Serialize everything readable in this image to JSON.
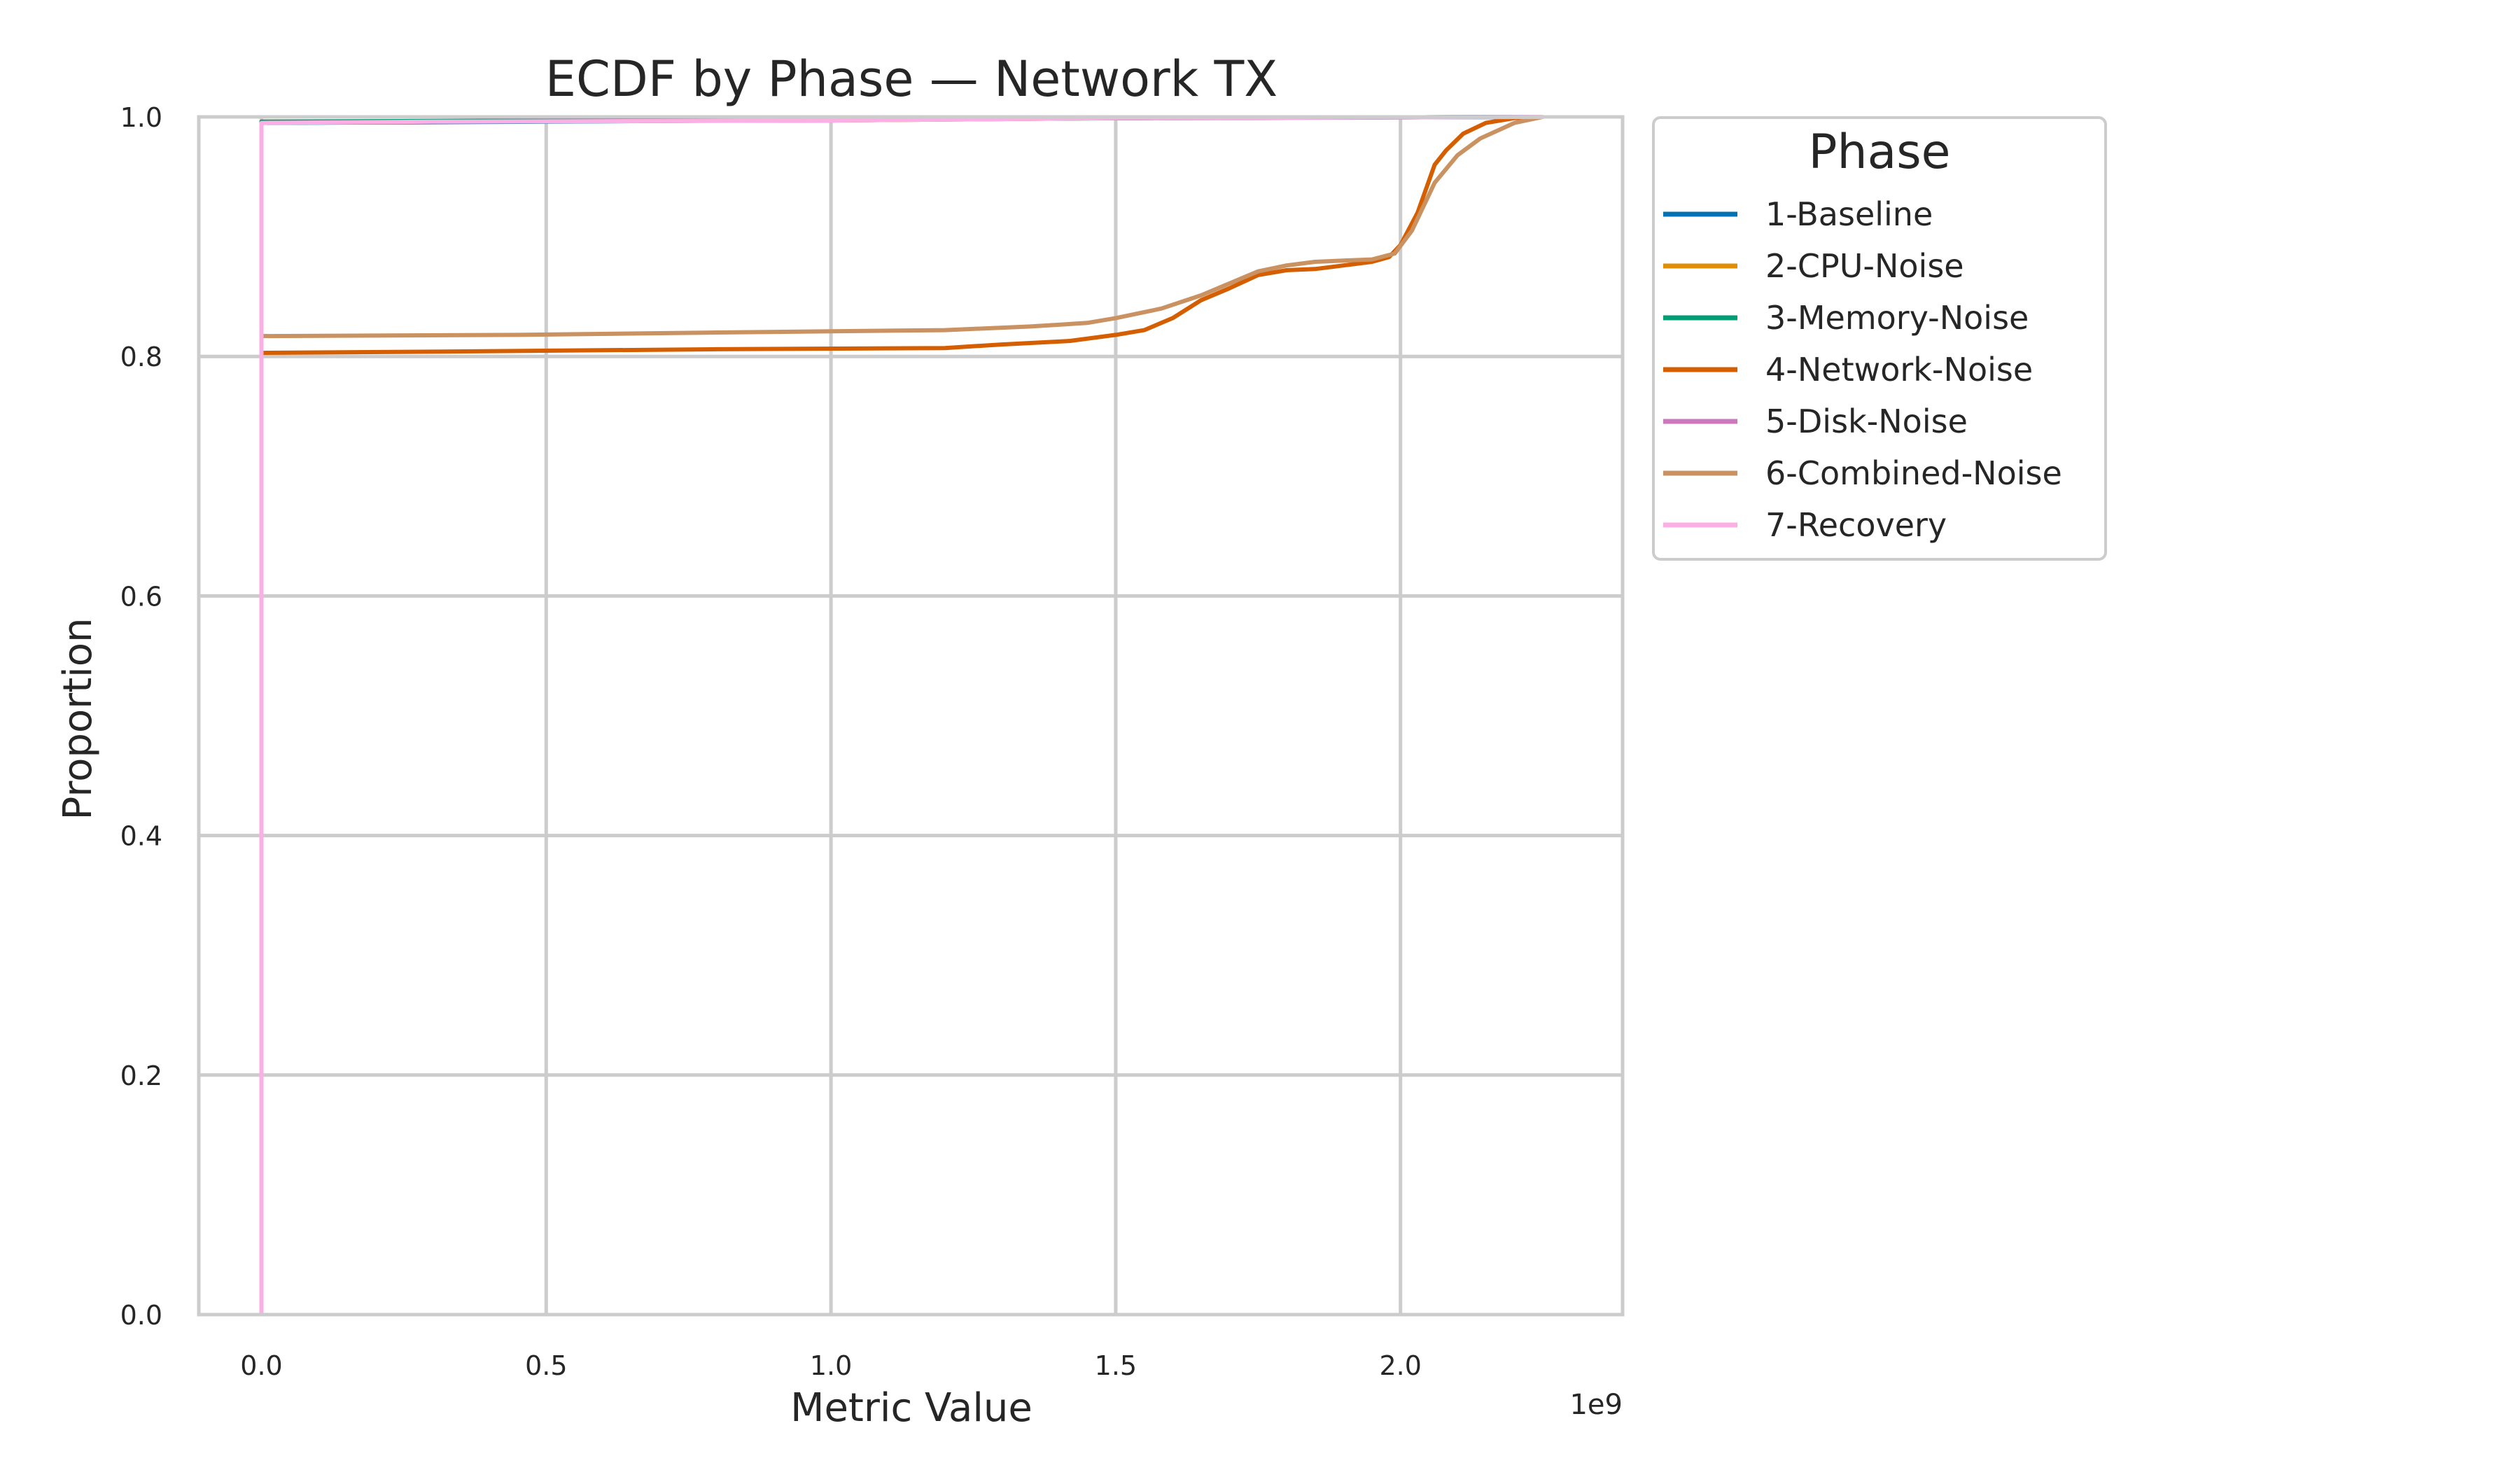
{
  "chart_data": {
    "type": "line",
    "title": "ECDF by Phase — Network TX",
    "xlabel": "Metric Value",
    "ylabel": "Proportion",
    "x_offset_label": "1e9",
    "xlim": [
      -110000000.0,
      2390000000.0
    ],
    "ylim": [
      0.0,
      1.0
    ],
    "x_ticks": [
      0.0,
      500000000.0,
      1000000000.0,
      1500000000.0,
      2000000000.0
    ],
    "x_tick_labels": [
      "0.0",
      "0.5",
      "1.0",
      "1.5",
      "2.0"
    ],
    "y_ticks": [
      0.0,
      0.2,
      0.4,
      0.6,
      0.8,
      1.0
    ],
    "y_tick_labels": [
      "0.0",
      "0.2",
      "0.4",
      "0.6",
      "0.8",
      "1.0"
    ],
    "grid": true,
    "legend": {
      "title": "Phase",
      "placement": "outside-top-right"
    },
    "series": [
      {
        "name": "1-Baseline",
        "color": "#0173b2",
        "points": [
          [
            0,
            0
          ],
          [
            0,
            0.995
          ],
          [
            500000000.0,
            0.996
          ],
          [
            1500000000.0,
            0.999
          ],
          [
            2250000000.0,
            1.0
          ]
        ]
      },
      {
        "name": "2-CPU-Noise",
        "color": "#de8f05",
        "points": [
          [
            0,
            0
          ],
          [
            0,
            0.996
          ],
          [
            1000000000.0,
            0.997
          ],
          [
            1500000000.0,
            0.999
          ],
          [
            2250000000.0,
            1.0
          ]
        ]
      },
      {
        "name": "3-Memory-Noise",
        "color": "#029e73",
        "points": [
          [
            0,
            0
          ],
          [
            0,
            0.996
          ],
          [
            1000000000.0,
            0.998
          ],
          [
            1600000000.0,
            0.999
          ],
          [
            2250000000.0,
            1.0
          ]
        ]
      },
      {
        "name": "4-Network-Noise",
        "color": "#d55e00",
        "points": [
          [
            0,
            0.803
          ],
          [
            300000000.0,
            0.804
          ],
          [
            800000000.0,
            0.806
          ],
          [
            1200000000.0,
            0.807
          ],
          [
            1300000000.0,
            0.81
          ],
          [
            1420000000.0,
            0.813
          ],
          [
            1500000000.0,
            0.818
          ],
          [
            1550000000.0,
            0.822
          ],
          [
            1600000000.0,
            0.832
          ],
          [
            1650000000.0,
            0.847
          ],
          [
            1700000000.0,
            0.857
          ],
          [
            1750000000.0,
            0.868
          ],
          [
            1800000000.0,
            0.872
          ],
          [
            1850000000.0,
            0.873
          ],
          [
            1900000000.0,
            0.876
          ],
          [
            1950000000.0,
            0.879
          ],
          [
            1980000000.0,
            0.883
          ],
          [
            2000000000.0,
            0.893
          ],
          [
            2030000000.0,
            0.92
          ],
          [
            2060000000.0,
            0.96
          ],
          [
            2080000000.0,
            0.972
          ],
          [
            2110000000.0,
            0.986
          ],
          [
            2150000000.0,
            0.995
          ],
          [
            2200000000.0,
            0.999
          ],
          [
            2250000000.0,
            1.0
          ]
        ]
      },
      {
        "name": "5-Disk-Noise",
        "color": "#cc78bc",
        "points": [
          [
            0,
            0
          ],
          [
            0,
            0.996
          ],
          [
            1000000000.0,
            0.997
          ],
          [
            1500000000.0,
            0.999
          ],
          [
            2250000000.0,
            1.0
          ]
        ]
      },
      {
        "name": "6-Combined-Noise",
        "color": "#ca9161",
        "points": [
          [
            0,
            0.817
          ],
          [
            450000000.0,
            0.818
          ],
          [
            800000000.0,
            0.82
          ],
          [
            1200000000.0,
            0.822
          ],
          [
            1350000000.0,
            0.825
          ],
          [
            1450000000.0,
            0.828
          ],
          [
            1500000000.0,
            0.832
          ],
          [
            1580000000.0,
            0.84
          ],
          [
            1650000000.0,
            0.851
          ],
          [
            1700000000.0,
            0.861
          ],
          [
            1750000000.0,
            0.871
          ],
          [
            1800000000.0,
            0.876
          ],
          [
            1850000000.0,
            0.879
          ],
          [
            1900000000.0,
            0.88
          ],
          [
            1950000000.0,
            0.881
          ],
          [
            1990000000.0,
            0.886
          ],
          [
            2020000000.0,
            0.905
          ],
          [
            2060000000.0,
            0.945
          ],
          [
            2100000000.0,
            0.968
          ],
          [
            2140000000.0,
            0.982
          ],
          [
            2200000000.0,
            0.995
          ],
          [
            2250000000.0,
            1.0
          ]
        ]
      },
      {
        "name": "7-Recovery",
        "color": "#fbafe4",
        "points": [
          [
            0,
            0
          ],
          [
            0,
            0.995
          ],
          [
            300000000.0,
            0.996
          ],
          [
            1000000000.0,
            0.997
          ],
          [
            1500000000.0,
            0.999
          ],
          [
            2250000000.0,
            1.0
          ]
        ]
      }
    ]
  }
}
